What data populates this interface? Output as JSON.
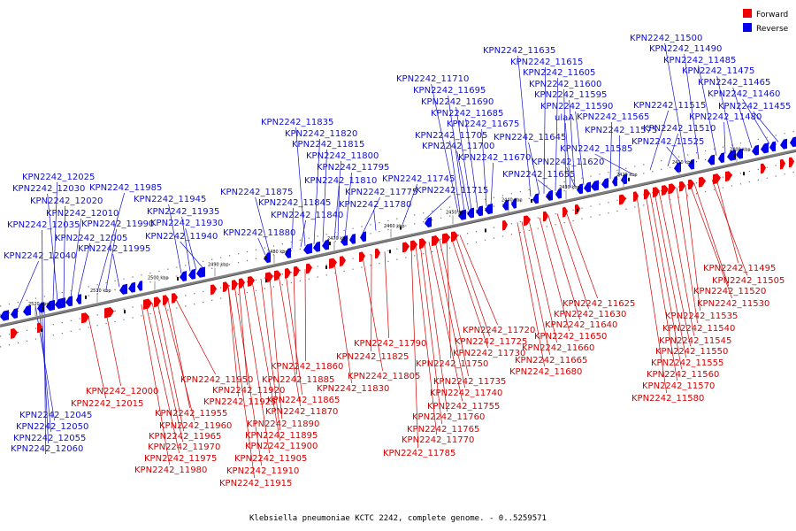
{
  "caption": "Klebsiella pneumoniae KCTC 2242, complete genome. - 0..5259571",
  "legend": [
    {
      "label": "Forward",
      "color": "#ee0000"
    },
    {
      "label": "Reverse",
      "color": "#0000ee"
    }
  ],
  "colors": {
    "forward": "#ee0000",
    "reverse": "#0000ee",
    "forward_label": "#d40000",
    "reverse_label": "#1010d0",
    "backbone": "#808080"
  },
  "ticks": [
    "2520 kbp",
    "2510 kbp",
    "2500 kbp",
    "2490 kbp",
    "2480 kbp",
    "2470 kbp",
    "2460 kbp",
    "2450 kbp",
    "2440 kbp",
    "2430 kbp",
    "2420 kbp",
    "2410 kbp",
    "2400 kbp"
  ],
  "reverse_genes": [
    "KPN2242_11500",
    "KPN2242_11490",
    "KPN2242_11485",
    "KPN2242_11475",
    "KPN2242_11465",
    "KPN2242_11460",
    "KPN2242_11455",
    "KPN2242_11515",
    "KPN2242_11480",
    "KPN2242_11510",
    "KPN2242_11525",
    "KPN2242_11635",
    "KPN2242_11615",
    "KPN2242_11605",
    "KPN2242_11600",
    "KPN2242_11595",
    "KPN2242_11590",
    "ulaA",
    "KPN2242_11565",
    "KPN2242_11575",
    "KPN2242_11645",
    "KPN2242_11585",
    "KPN2242_11620",
    "KPN2242_11655",
    "KPN2242_11710",
    "KPN2242_11695",
    "KPN2242_11690",
    "KPN2242_11685",
    "KPN2242_11675",
    "KPN2242_11705",
    "KPN2242_11700",
    "KPN2242_11670",
    "KPN2242_11835",
    "KPN2242_11820",
    "KPN2242_11815",
    "KPN2242_11800",
    "KPN2242_11795",
    "KPN2242_11810",
    "KPN2242_11745",
    "KPN2242_11775",
    "KPN2242_11715",
    "KPN2242_11875",
    "KPN2242_11845",
    "KPN2242_11780",
    "KPN2242_11840",
    "KPN2242_11880",
    "KPN2242_12025",
    "KPN2242_12030",
    "KPN2242_11985",
    "KPN2242_12020",
    "KPN2242_11945",
    "KPN2242_12010",
    "KPN2242_11935",
    "KPN2242_12035",
    "KPN2242_11990",
    "KPN2242_11930",
    "KPN2242_12005",
    "KPN2242_11940",
    "KPN2242_11995",
    "KPN2242_12040",
    "KPN2242_12045",
    "KPN2242_12050",
    "KPN2242_12055",
    "KPN2242_12060"
  ],
  "forward_genes": [
    "KPN2242_11495",
    "KPN2242_11505",
    "KPN2242_11520",
    "KPN2242_11530",
    "KPN2242_11535",
    "KPN2242_11540",
    "KPN2242_11545",
    "KPN2242_11550",
    "KPN2242_11555",
    "KPN2242_11560",
    "KPN2242_11570",
    "KPN2242_11580",
    "KPN2242_11625",
    "KPN2242_11630",
    "KPN2242_11640",
    "KPN2242_11650",
    "KPN2242_11660",
    "KPN2242_11665",
    "KPN2242_11680",
    "KPN2242_11720",
    "KPN2242_11725",
    "KPN2242_11730",
    "KPN2242_11750",
    "KPN2242_11735",
    "KPN2242_11740",
    "KPN2242_11755",
    "KPN2242_11760",
    "KPN2242_11765",
    "KPN2242_11770",
    "KPN2242_11785",
    "KPN2242_11790",
    "KPN2242_11825",
    "KPN2242_11805",
    "KPN2242_11830",
    "KPN2242_11860",
    "KPN2242_11885",
    "KPN2242_11865",
    "KPN2242_11870",
    "KPN2242_11890",
    "KPN2242_11895",
    "KPN2242_11900",
    "KPN2242_11905",
    "KPN2242_11910",
    "KPN2242_11915",
    "KPN2242_11950",
    "KPN2242_11920",
    "KPN2242_11925",
    "KPN2242_11955",
    "KPN2242_11960",
    "KPN2242_11965",
    "KPN2242_11970",
    "KPN2242_11975",
    "KPN2242_11980",
    "KPN2242_12000",
    "KPN2242_12015"
  ]
}
